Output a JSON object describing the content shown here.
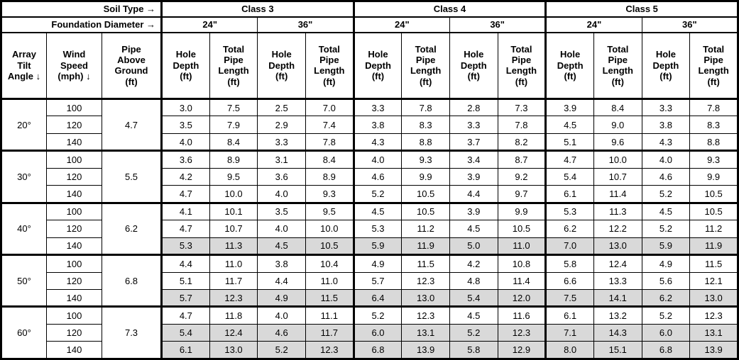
{
  "table": {
    "header": {
      "soil_type_label": "Soil Type →",
      "foundation_diameter_label": "Foundation Diameter →",
      "classes": [
        {
          "label": "Class 3",
          "diameters": [
            "24\"",
            "36\""
          ]
        },
        {
          "label": "Class 4",
          "diameters": [
            "24\"",
            "36\""
          ]
        },
        {
          "label": "Class 5",
          "diameters": [
            "24\"",
            "36\""
          ]
        }
      ],
      "col_tilt": "Array\nTilt\nAngle ↓",
      "col_wind": "Wind\nSpeed\n(mph) ↓",
      "col_pipe_above": "Pipe\nAbove\nGround\n(ft)",
      "col_hole": "Hole\nDepth\n(ft)",
      "col_total": "Total\nPipe\nLength\n(ft)"
    },
    "groups": [
      {
        "tilt": "20°",
        "pipe_above_ground": "4.7",
        "rows": [
          {
            "wind": "100",
            "shaded": false,
            "values": [
              "3.0",
              "7.5",
              "2.5",
              "7.0",
              "3.3",
              "7.8",
              "2.8",
              "7.3",
              "3.9",
              "8.4",
              "3.3",
              "7.8"
            ]
          },
          {
            "wind": "120",
            "shaded": false,
            "values": [
              "3.5",
              "7.9",
              "2.9",
              "7.4",
              "3.8",
              "8.3",
              "3.3",
              "7.8",
              "4.5",
              "9.0",
              "3.8",
              "8.3"
            ]
          },
          {
            "wind": "140",
            "shaded": false,
            "values": [
              "4.0",
              "8.4",
              "3.3",
              "7.8",
              "4.3",
              "8.8",
              "3.7",
              "8.2",
              "5.1",
              "9.6",
              "4.3",
              "8.8"
            ]
          }
        ]
      },
      {
        "tilt": "30°",
        "pipe_above_ground": "5.5",
        "rows": [
          {
            "wind": "100",
            "shaded": false,
            "values": [
              "3.6",
              "8.9",
              "3.1",
              "8.4",
              "4.0",
              "9.3",
              "3.4",
              "8.7",
              "4.7",
              "10.0",
              "4.0",
              "9.3"
            ]
          },
          {
            "wind": "120",
            "shaded": false,
            "values": [
              "4.2",
              "9.5",
              "3.6",
              "8.9",
              "4.6",
              "9.9",
              "3.9",
              "9.2",
              "5.4",
              "10.7",
              "4.6",
              "9.9"
            ]
          },
          {
            "wind": "140",
            "shaded": false,
            "values": [
              "4.7",
              "10.0",
              "4.0",
              "9.3",
              "5.2",
              "10.5",
              "4.4",
              "9.7",
              "6.1",
              "11.4",
              "5.2",
              "10.5"
            ]
          }
        ]
      },
      {
        "tilt": "40°",
        "pipe_above_ground": "6.2",
        "rows": [
          {
            "wind": "100",
            "shaded": false,
            "values": [
              "4.1",
              "10.1",
              "3.5",
              "9.5",
              "4.5",
              "10.5",
              "3.9",
              "9.9",
              "5.3",
              "11.3",
              "4.5",
              "10.5"
            ]
          },
          {
            "wind": "120",
            "shaded": false,
            "values": [
              "4.7",
              "10.7",
              "4.0",
              "10.0",
              "5.3",
              "11.2",
              "4.5",
              "10.5",
              "6.2",
              "12.2",
              "5.2",
              "11.2"
            ]
          },
          {
            "wind": "140",
            "shaded": true,
            "values": [
              "5.3",
              "11.3",
              "4.5",
              "10.5",
              "5.9",
              "11.9",
              "5.0",
              "11.0",
              "7.0",
              "13.0",
              "5.9",
              "11.9"
            ]
          }
        ]
      },
      {
        "tilt": "50°",
        "pipe_above_ground": "6.8",
        "rows": [
          {
            "wind": "100",
            "shaded": false,
            "values": [
              "4.4",
              "11.0",
              "3.8",
              "10.4",
              "4.9",
              "11.5",
              "4.2",
              "10.8",
              "5.8",
              "12.4",
              "4.9",
              "11.5"
            ]
          },
          {
            "wind": "120",
            "shaded": false,
            "values": [
              "5.1",
              "11.7",
              "4.4",
              "11.0",
              "5.7",
              "12.3",
              "4.8",
              "11.4",
              "6.6",
              "13.3",
              "5.6",
              "12.1"
            ]
          },
          {
            "wind": "140",
            "shaded": true,
            "values": [
              "5.7",
              "12.3",
              "4.9",
              "11.5",
              "6.4",
              "13.0",
              "5.4",
              "12.0",
              "7.5",
              "14.1",
              "6.2",
              "13.0"
            ]
          }
        ]
      },
      {
        "tilt": "60°",
        "pipe_above_ground": "7.3",
        "rows": [
          {
            "wind": "100",
            "shaded": false,
            "values": [
              "4.7",
              "11.8",
              "4.0",
              "11.1",
              "5.2",
              "12.3",
              "4.5",
              "11.6",
              "6.1",
              "13.2",
              "5.2",
              "12.3"
            ]
          },
          {
            "wind": "120",
            "shaded": true,
            "values": [
              "5.4",
              "12.4",
              "4.6",
              "11.7",
              "6.0",
              "13.1",
              "5.2",
              "12.3",
              "7.1",
              "14.3",
              "6.0",
              "13.1"
            ]
          },
          {
            "wind": "140",
            "shaded": true,
            "values": [
              "6.1",
              "13.0",
              "5.2",
              "12.3",
              "6.8",
              "13.9",
              "5.8",
              "12.9",
              "8.0",
              "15.1",
              "6.8",
              "13.9"
            ]
          }
        ]
      }
    ],
    "colors": {
      "shaded_row_bg": "#d9d9d9",
      "border": "#000000"
    }
  }
}
